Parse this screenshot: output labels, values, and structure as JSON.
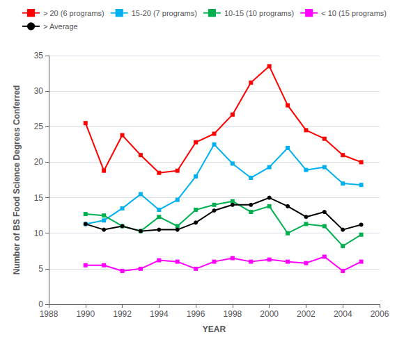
{
  "chart_data": {
    "type": "line",
    "xlabel": "YEAR",
    "ylabel": "Number of BS Food Science Degrees Conferred",
    "x": [
      1990,
      1991,
      1992,
      1993,
      1994,
      1995,
      1996,
      1997,
      1998,
      1999,
      2000,
      2001,
      2002,
      2003,
      2004,
      2005
    ],
    "series": [
      {
        "name": "> 20 (6 programs)",
        "color": "#ff0000",
        "marker": "square",
        "values": [
          25.5,
          18.8,
          23.8,
          21.0,
          18.5,
          18.8,
          22.8,
          24.0,
          26.7,
          31.2,
          33.5,
          28.0,
          24.5,
          23.3,
          21.0,
          20.0
        ]
      },
      {
        "name": "15-20 (7 programs)",
        "color": "#00b0f0",
        "marker": "square",
        "values": [
          11.3,
          11.8,
          13.5,
          15.5,
          13.3,
          14.7,
          18.0,
          22.5,
          19.8,
          17.8,
          19.3,
          22.0,
          18.9,
          19.3,
          17.0,
          16.8
        ]
      },
      {
        "name": "10-15 (10 programs)",
        "color": "#00b050",
        "marker": "square",
        "values": [
          12.7,
          12.5,
          11.0,
          10.3,
          12.3,
          11.0,
          13.3,
          14.0,
          14.5,
          13.0,
          13.8,
          10.0,
          11.3,
          11.0,
          8.2,
          9.8
        ]
      },
      {
        "name": "< 10 (15 programs)",
        "color": "#ff00ff",
        "marker": "square",
        "values": [
          5.5,
          5.5,
          4.7,
          5.0,
          6.2,
          6.0,
          5.0,
          6.0,
          6.5,
          6.0,
          6.3,
          6.0,
          5.8,
          6.7,
          4.7,
          6.0
        ]
      },
      {
        "name": "> Average",
        "color": "#000000",
        "marker": "circle",
        "values": [
          11.3,
          10.5,
          11.0,
          10.3,
          10.5,
          10.5,
          11.5,
          13.2,
          14.0,
          14.0,
          15.0,
          13.8,
          12.3,
          13.0,
          10.5,
          11.2
        ]
      }
    ],
    "xlim": [
      1988,
      2006
    ],
    "xticks": [
      1988,
      1990,
      1992,
      1994,
      1996,
      1998,
      2000,
      2002,
      2004,
      2006
    ],
    "ylim": [
      0,
      35
    ],
    "yticks": [
      0,
      5,
      10,
      15,
      20,
      25,
      30,
      35
    ],
    "grid": true,
    "legend": "upper right"
  }
}
